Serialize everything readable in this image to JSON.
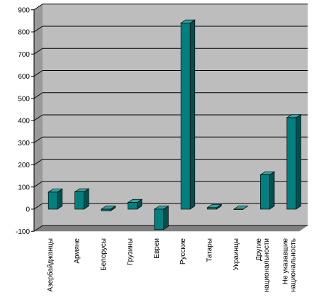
{
  "chart_data": {
    "type": "bar",
    "title": "",
    "xlabel": "",
    "ylabel": "",
    "ylim": [
      -100,
      900
    ],
    "yticks": [
      -100,
      0,
      100,
      200,
      300,
      400,
      500,
      600,
      700,
      800,
      900
    ],
    "grid": true,
    "legend": "none",
    "style": "3d",
    "categories": [
      [
        "Азербайджанцы"
      ],
      [
        "Армяне"
      ],
      [
        "Белорусы"
      ],
      [
        "Грузины"
      ],
      [
        "Евреи"
      ],
      [
        "Русские"
      ],
      [
        "Татары"
      ],
      [
        "Украинцы"
      ],
      [
        "Другие",
        "национальности"
      ],
      [
        "Не указавшие",
        "национальность"
      ]
    ],
    "series": [
      {
        "values": [
          77,
          78,
          -8,
          30,
          -92,
          840,
          7,
          0,
          155,
          413
        ]
      }
    ],
    "colors": {
      "wall": "#bdbdbd",
      "floor": "#808080",
      "bar_front": "#008080",
      "bar_top": "#2fa3a3",
      "bar_side": "#005050",
      "grid": "#000000"
    }
  }
}
